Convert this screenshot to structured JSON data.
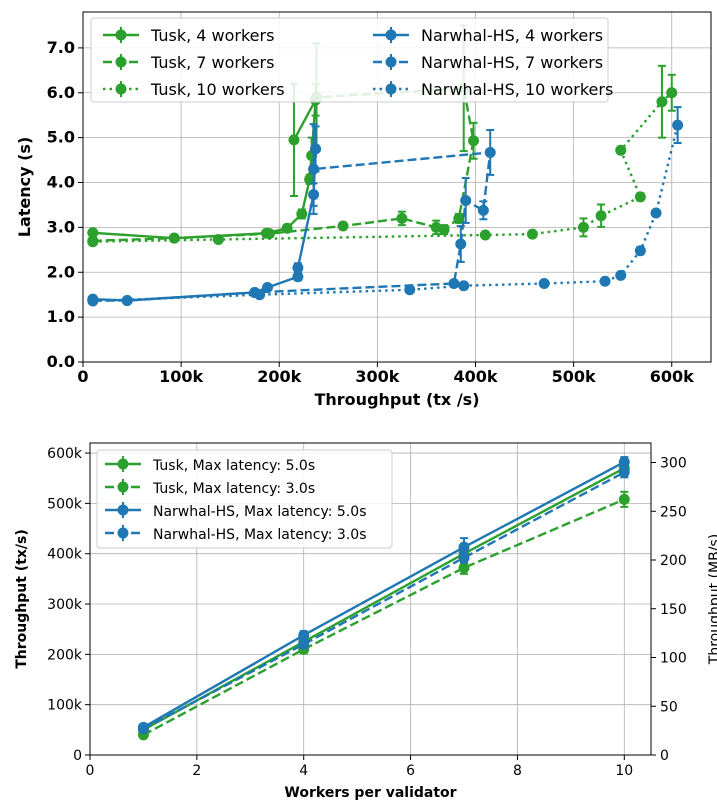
{
  "chart_data": [
    {
      "type": "line",
      "xlabel": "Throughput (tx /s)",
      "ylabel": "Latency (s)",
      "xlim": [
        0,
        640000
      ],
      "ylim": [
        0,
        7.8
      ],
      "x_ticks": [
        0,
        100000,
        200000,
        300000,
        400000,
        500000,
        600000
      ],
      "x_tick_labels": [
        "0",
        "100k",
        "200k",
        "300k",
        "400k",
        "500k",
        "600k"
      ],
      "y_ticks": [
        0,
        1,
        2,
        3,
        4,
        5,
        6,
        7
      ],
      "y_tick_labels": [
        "0.0",
        "1.0",
        "2.0",
        "3.0",
        "4.0",
        "5.0",
        "6.0",
        "7.0"
      ],
      "grid": true,
      "legend_position": "top",
      "series": [
        {
          "name": "Tusk, 4 workers",
          "color": "#2ca02c",
          "style": "solid",
          "points": [
            [
              10000,
              2.88,
              0.05
            ],
            [
              93000,
              2.76,
              0.05
            ],
            [
              187000,
              2.87,
              0.05
            ],
            [
              208000,
              2.98,
              0.05
            ],
            [
              223000,
              3.3,
              0.1
            ],
            [
              231000,
              4.07,
              0.1
            ],
            [
              233000,
              4.6,
              0.4
            ],
            [
              237000,
              5.84,
              0.35
            ],
            [
              215000,
              4.95,
              1.25
            ]
          ]
        },
        {
          "name": "Tusk, 7 workers",
          "color": "#2ca02c",
          "style": "dashed",
          "points": [
            [
              10000,
              2.7,
              0.06
            ],
            [
              93000,
              2.76,
              0.05
            ],
            [
              190000,
              2.86,
              0.06
            ],
            [
              265000,
              3.03,
              0.05
            ],
            [
              325000,
              3.2,
              0.15
            ],
            [
              360000,
              3.0,
              0.15
            ],
            [
              368000,
              2.95,
              0.1
            ],
            [
              383000,
              3.2,
              0.1
            ],
            [
              398000,
              4.93,
              0.4
            ],
            [
              388000,
              6.1,
              1.4
            ],
            [
              238000,
              5.9,
              1.2
            ]
          ]
        },
        {
          "name": "Tusk, 10 workers",
          "color": "#2ca02c",
          "style": "dotted",
          "points": [
            [
              10000,
              2.68,
              0.05
            ],
            [
              138000,
              2.73,
              0.05
            ],
            [
              410000,
              2.83,
              0.05
            ],
            [
              458000,
              2.85,
              0.05
            ],
            [
              510000,
              3.0,
              0.2
            ],
            [
              528000,
              3.26,
              0.25
            ],
            [
              568000,
              3.68,
              0.08
            ],
            [
              548000,
              4.72,
              0.06
            ],
            [
              590000,
              5.8,
              0.8
            ],
            [
              600000,
              6.0,
              0.4
            ]
          ]
        },
        {
          "name": "Narwhal-HS, 4 workers",
          "color": "#1f77b4",
          "style": "solid",
          "points": [
            [
              10000,
              1.4,
              0.05
            ],
            [
              45000,
              1.37,
              0.04
            ],
            [
              175000,
              1.55,
              0.04
            ],
            [
              188000,
              1.66,
              0.05
            ],
            [
              219000,
              1.9,
              0.08
            ],
            [
              219000,
              2.1,
              0.1
            ],
            [
              235000,
              3.73,
              0.25
            ],
            [
              237000,
              4.75,
              0.5
            ]
          ]
        },
        {
          "name": "Narwhal-HS, 7 workers",
          "color": "#1f77b4",
          "style": "dashed",
          "points": [
            [
              10000,
              1.37,
              0.05
            ],
            [
              45000,
              1.37,
              0.04
            ],
            [
              175000,
              1.55,
              0.04
            ],
            [
              378000,
              1.75,
              0.06
            ],
            [
              385000,
              2.63,
              0.4
            ],
            [
              390000,
              3.6,
              0.5
            ],
            [
              408000,
              3.38,
              0.2
            ],
            [
              415000,
              4.67,
              0.5
            ],
            [
              235000,
              4.3,
              1.0
            ]
          ]
        },
        {
          "name": "Narwhal-HS, 10 workers",
          "color": "#1f77b4",
          "style": "dotted",
          "points": [
            [
              10000,
              1.36,
              0.05
            ],
            [
              180000,
              1.5,
              0.04
            ],
            [
              333000,
              1.61,
              0.05
            ],
            [
              388000,
              1.7,
              0.06
            ],
            [
              470000,
              1.75,
              0.05
            ],
            [
              532000,
              1.8,
              0.05
            ],
            [
              548000,
              1.93,
              0.05
            ],
            [
              568000,
              2.48,
              0.08
            ],
            [
              584000,
              3.32,
              0.06
            ],
            [
              606000,
              5.28,
              0.4
            ]
          ]
        }
      ]
    },
    {
      "type": "line",
      "xlabel": "Workers per validator",
      "ylabel": "Throughput (tx/s)",
      "ylabel_right": "Throughput (MB/s)",
      "xlim": [
        0,
        10.5
      ],
      "ylim": [
        0,
        620000
      ],
      "ylim_right": [
        0,
        320
      ],
      "x_ticks": [
        0,
        2,
        4,
        6,
        8,
        10
      ],
      "x_tick_labels": [
        "0",
        "2",
        "4",
        "6",
        "8",
        "10"
      ],
      "y_ticks": [
        0,
        100000,
        200000,
        300000,
        400000,
        500000,
        600000
      ],
      "y_tick_labels": [
        "0",
        "100k",
        "200k",
        "300k",
        "400k",
        "500k",
        "600k"
      ],
      "y_ticks_right": [
        0,
        50,
        100,
        150,
        200,
        250,
        300
      ],
      "y_tick_labels_right": [
        "0",
        "50",
        "100",
        "150",
        "200",
        "250",
        "300"
      ],
      "grid": true,
      "legend_position": "upper-left",
      "series": [
        {
          "name": "Tusk, Max latency: 5.0s",
          "color": "#2ca02c",
          "style": "solid",
          "x": [
            1,
            4,
            7,
            10
          ],
          "values": [
            50000,
            225000,
            400000,
            570000
          ],
          "errors": [
            3000,
            8000,
            10000,
            18000
          ]
        },
        {
          "name": "Tusk, Max latency: 3.0s",
          "color": "#2ca02c",
          "style": "dashed",
          "x": [
            1,
            4,
            7,
            10
          ],
          "values": [
            40000,
            210000,
            372000,
            508000
          ],
          "errors": [
            3000,
            8000,
            12000,
            15000
          ]
        },
        {
          "name": "Narwhal-HS, Max latency: 5.0s",
          "color": "#1f77b4",
          "style": "solid",
          "x": [
            1,
            4,
            7,
            10
          ],
          "values": [
            55000,
            238000,
            413000,
            582000
          ],
          "errors": [
            3000,
            8000,
            18000,
            10000
          ]
        },
        {
          "name": "Narwhal-HS, Max latency: 3.0s",
          "color": "#1f77b4",
          "style": "dashed",
          "x": [
            1,
            4,
            7,
            10
          ],
          "values": [
            52000,
            220000,
            392000,
            562000
          ],
          "errors": [
            3000,
            8000,
            10000,
            10000
          ]
        }
      ]
    }
  ]
}
